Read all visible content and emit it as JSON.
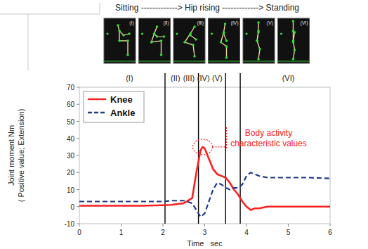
{
  "chart_data": {
    "type": "line",
    "title": "Sitting -------------> Hip rising -------------> Standing",
    "frames": [
      "(Ⅰ)",
      "(Ⅱ)",
      "(Ⅲ)",
      "(Ⅳ)",
      "(Ⅴ)",
      "(Ⅵ)"
    ],
    "phase_labels": [
      {
        "x": 1.2,
        "label": "(I)"
      },
      {
        "x": 2.3,
        "label": "(II)"
      },
      {
        "x": 2.62,
        "label": "(III)"
      },
      {
        "x": 2.97,
        "label": "(IV)"
      },
      {
        "x": 3.3,
        "label": "(V)"
      },
      {
        "x": 5.0,
        "label": "(VI)"
      }
    ],
    "phase_bounds": [
      2.05,
      2.85,
      3.5,
      3.85
    ],
    "y_label": [
      "Joint moment Nm",
      "( Positive value; Extension)"
    ],
    "x_label": "Time   sec",
    "x": [
      0,
      0.5,
      1,
      1.5,
      2,
      2.2,
      2.5,
      2.7,
      2.8,
      2.9,
      2.95,
      3,
      3.1,
      3.2,
      3.3,
      3.4,
      3.5,
      3.6,
      3.7,
      3.8,
      3.9,
      4,
      4.1,
      4.2,
      4.3,
      4.5,
      5,
      5.5,
      6
    ],
    "series": [
      {
        "name": "Knee",
        "color": "#ff2020",
        "line_style": "solid",
        "values": [
          0.5,
          0.5,
          0.5,
          0.5,
          0.8,
          1,
          2,
          5,
          20,
          33,
          35,
          34,
          28,
          22,
          19,
          18,
          17,
          14,
          10,
          7,
          3,
          0,
          -2,
          -1,
          -1,
          0,
          0,
          0,
          0
        ]
      },
      {
        "name": "Ankle",
        "color": "#1f3a8a",
        "line_style": "dashed",
        "values": [
          3,
          3,
          3,
          3,
          3,
          3.5,
          3.5,
          2,
          -2,
          -6,
          -5,
          -4,
          3,
          10,
          14,
          13,
          11,
          10,
          11,
          11,
          13,
          18,
          20,
          19,
          18,
          17,
          17,
          17,
          16.5
        ]
      }
    ],
    "annotation": {
      "lines": [
        "Body activity",
        "characteristic values"
      ],
      "x": 2.95,
      "y": 35
    },
    "xlim": [
      0,
      6
    ],
    "xticks": [
      0,
      1,
      2,
      3,
      4,
      5,
      6
    ],
    "ylim": [
      -10,
      70
    ],
    "yticks": [
      -10,
      0,
      10,
      20,
      30,
      40,
      50,
      60,
      70
    ],
    "legend": "upper-left",
    "grid": false
  }
}
